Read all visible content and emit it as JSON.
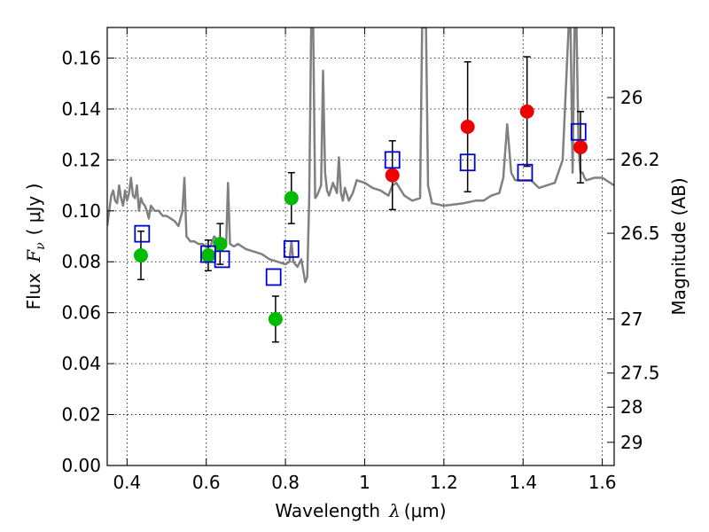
{
  "chart_data": {
    "type": "scatter",
    "xlabel": "Wavelength",
    "xlabel_symbol": "λ",
    "xlabel_unit": "(μm)",
    "ylabel_left": "Flux",
    "ylabel_symbol": "F",
    "ylabel_sub": "ν",
    "ylabel_unit": "( μJy )",
    "ylabel_right": "Magnitude (AB)",
    "xlim": [
      0.35,
      1.63
    ],
    "ylim": [
      0.0,
      0.172
    ],
    "grid": true,
    "x_ticks": [
      0.4,
      0.6,
      0.8,
      1.0,
      1.2,
      1.4,
      1.6
    ],
    "x_tick_labels": [
      "0.4",
      "0.6",
      "0.8",
      "1",
      "1.2",
      "1.4",
      "1.6"
    ],
    "y_ticks": [
      0.0,
      0.02,
      0.04,
      0.06,
      0.08,
      0.1,
      0.12,
      0.14,
      0.16
    ],
    "y_tick_labels": [
      "0.00",
      "0.02",
      "0.04",
      "0.06",
      "0.08",
      "0.10",
      "0.12",
      "0.14",
      "0.16"
    ],
    "right_ticks": [
      {
        "label": "26",
        "flux": 0.1445
      },
      {
        "label": "26.2",
        "flux": 0.1202
      },
      {
        "label": "26.5",
        "flux": 0.0912
      },
      {
        "label": "27",
        "flux": 0.0575
      },
      {
        "label": "27.5",
        "flux": 0.0363
      },
      {
        "label": "28",
        "flux": 0.0229
      },
      {
        "label": "29",
        "flux": 0.0091
      }
    ],
    "series": [
      {
        "name": "model-spectrum",
        "style": "line",
        "color": "#808080",
        "x": [
          0.35,
          0.36,
          0.365,
          0.37,
          0.375,
          0.38,
          0.385,
          0.39,
          0.395,
          0.4,
          0.405,
          0.41,
          0.415,
          0.42,
          0.425,
          0.43,
          0.435,
          0.44,
          0.445,
          0.45,
          0.455,
          0.46,
          0.47,
          0.48,
          0.49,
          0.5,
          0.51,
          0.52,
          0.53,
          0.54,
          0.545,
          0.55,
          0.56,
          0.57,
          0.58,
          0.59,
          0.6,
          0.61,
          0.62,
          0.63,
          0.64,
          0.65,
          0.655,
          0.66,
          0.67,
          0.68,
          0.7,
          0.72,
          0.74,
          0.76,
          0.78,
          0.8,
          0.81,
          0.815,
          0.82,
          0.83,
          0.84,
          0.85,
          0.855,
          0.86,
          0.865,
          0.87,
          0.875,
          0.88,
          0.89,
          0.895,
          0.9,
          0.905,
          0.91,
          0.92,
          0.93,
          0.935,
          0.94,
          0.945,
          0.95,
          0.96,
          0.97,
          0.98,
          1.0,
          1.02,
          1.04,
          1.06,
          1.07,
          1.08,
          1.1,
          1.12,
          1.14,
          1.145,
          1.15,
          1.155,
          1.16,
          1.17,
          1.2,
          1.25,
          1.28,
          1.3,
          1.32,
          1.34,
          1.35,
          1.36,
          1.37,
          1.38,
          1.39,
          1.4,
          1.42,
          1.44,
          1.46,
          1.48,
          1.5,
          1.51,
          1.515,
          1.52,
          1.525,
          1.53,
          1.535,
          1.54,
          1.545,
          1.55,
          1.555,
          1.56,
          1.58,
          1.6,
          1.63
        ],
        "y": [
          0.094,
          0.106,
          0.108,
          0.104,
          0.103,
          0.11,
          0.105,
          0.102,
          0.108,
          0.104,
          0.107,
          0.113,
          0.106,
          0.105,
          0.11,
          0.1,
          0.105,
          0.103,
          0.102,
          0.1,
          0.097,
          0.102,
          0.1,
          0.1,
          0.098,
          0.098,
          0.097,
          0.096,
          0.094,
          0.1,
          0.113,
          0.09,
          0.088,
          0.088,
          0.087,
          0.087,
          0.086,
          0.086,
          0.09,
          0.088,
          0.087,
          0.086,
          0.111,
          0.087,
          0.086,
          0.087,
          0.085,
          0.084,
          0.083,
          0.081,
          0.08,
          0.079,
          0.08,
          0.088,
          0.08,
          0.078,
          0.081,
          0.072,
          0.074,
          0.105,
          0.172,
          0.172,
          0.105,
          0.106,
          0.11,
          0.155,
          0.115,
          0.108,
          0.106,
          0.111,
          0.107,
          0.121,
          0.107,
          0.104,
          0.109,
          0.104,
          0.107,
          0.112,
          0.111,
          0.109,
          0.108,
          0.106,
          0.11,
          0.111,
          0.106,
          0.104,
          0.105,
          0.172,
          0.172,
          0.172,
          0.11,
          0.103,
          0.102,
          0.103,
          0.104,
          0.104,
          0.106,
          0.107,
          0.113,
          0.134,
          0.115,
          0.112,
          0.112,
          0.112,
          0.112,
          0.109,
          0.11,
          0.111,
          0.12,
          0.155,
          0.172,
          0.172,
          0.115,
          0.172,
          0.172,
          0.125,
          0.115,
          0.115,
          0.113,
          0.112,
          0.113,
          0.113,
          0.11
        ]
      },
      {
        "name": "observed-optical",
        "style": "marker",
        "marker": "circle",
        "color": "#00bb00",
        "x": [
          0.435,
          0.605,
          0.635,
          0.775,
          0.815
        ],
        "y": [
          0.0825,
          0.0825,
          0.087,
          0.0575,
          0.105
        ],
        "err": [
          0.0095,
          0.006,
          0.008,
          0.009,
          0.01
        ]
      },
      {
        "name": "observed-nir",
        "style": "marker",
        "marker": "circle",
        "color": "#ee0000",
        "x": [
          1.07,
          1.26,
          1.41,
          1.545
        ],
        "y": [
          0.114,
          0.133,
          0.139,
          0.125
        ],
        "err": [
          0.0135,
          0.0255,
          0.0215,
          0.014
        ]
      },
      {
        "name": "model-photometry",
        "style": "marker",
        "marker": "square-open",
        "color": "#0000cc",
        "x": [
          0.438,
          0.605,
          0.64,
          0.77,
          0.815,
          1.07,
          1.26,
          1.405,
          1.54
        ],
        "y": [
          0.091,
          0.083,
          0.081,
          0.074,
          0.085,
          0.12,
          0.119,
          0.115,
          0.131
        ]
      }
    ]
  }
}
